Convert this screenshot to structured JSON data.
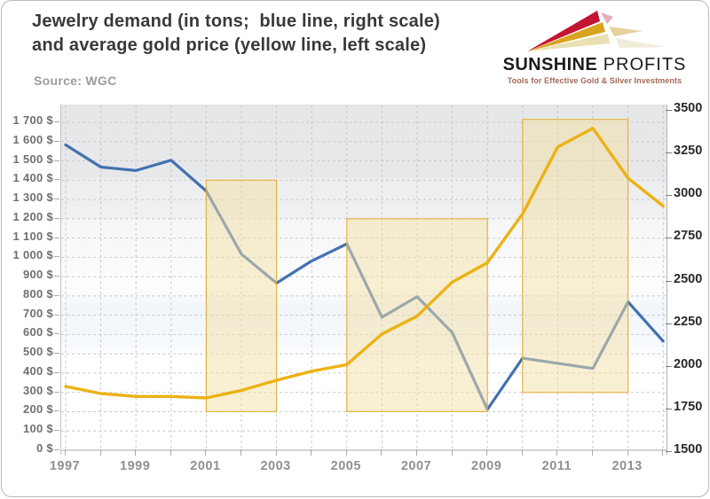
{
  "header": {
    "title_line1": "Jewelry demand (in tons;  blue line, right scale)",
    "title_line2": "and average gold price (yellow line, left scale)",
    "source": "Source: WGC"
  },
  "logo": {
    "brand_bold": "SUNSHINE",
    "brand_light": " PROFITS",
    "tagline": "Tools for Effective Gold & Silver Investments",
    "colors": {
      "red": "#c31432",
      "gold": "#d9a41e",
      "cream": "#eadfb4",
      "pink_echo": "#e2aeb8",
      "gold_echo": "#e5d39b",
      "cream_echo": "#f1ecda",
      "text": "#1c1c1c",
      "tagline_text": "#a4695a"
    }
  },
  "chart_data": {
    "type": "line",
    "title": "Jewelry demand (in tons; blue line, right scale) and average gold price (yellow line, left scale)",
    "source": "WGC",
    "x": [
      1997,
      1998,
      1999,
      2000,
      2001,
      2002,
      2003,
      2004,
      2005,
      2006,
      2007,
      2008,
      2009,
      2010,
      2011,
      2012,
      2013,
      2014
    ],
    "series": [
      {
        "name": "Average gold price (USD, left scale)",
        "axis": "left",
        "color": "#ecb214",
        "values": [
          331,
          294,
          279,
          279,
          271,
          310,
          363,
          410,
          444,
          603,
          695,
          872,
          972,
          1225,
          1572,
          1669,
          1411,
          1266
        ]
      },
      {
        "name": "Jewelry demand (tons, right scale)",
        "axis": "right",
        "color": "#4271b0",
        "values": [
          3300,
          3170,
          3150,
          3210,
          3030,
          2660,
          2490,
          2620,
          2720,
          2290,
          2410,
          2200,
          1750,
          2050,
          2020,
          1990,
          2380,
          2150
        ]
      }
    ],
    "highlight_bands": [
      {
        "from_x": 2001,
        "to_x": 2003,
        "low": 200,
        "high": 1400
      },
      {
        "from_x": 2005,
        "to_x": 2009,
        "low": 200,
        "high": 1200
      },
      {
        "from_x": 2010,
        "to_x": 2013,
        "low": 300,
        "high": 1715
      }
    ],
    "band_style": {
      "fill": "#f4e0a6",
      "opacity": 0.5,
      "border": "#e2ad28"
    },
    "left_axis": {
      "min": 0,
      "max": 1700,
      "step": 100,
      "suffix": " $"
    },
    "right_axis": {
      "min": 1500,
      "max": 3500,
      "step": 250
    },
    "x_axis": {
      "tick_labels": [
        "1997",
        "1999",
        "2001",
        "2003",
        "2005",
        "2007",
        "2009",
        "2011",
        "2013"
      ],
      "label_every_years": 2
    },
    "grid": "dashed",
    "legend": "none"
  }
}
